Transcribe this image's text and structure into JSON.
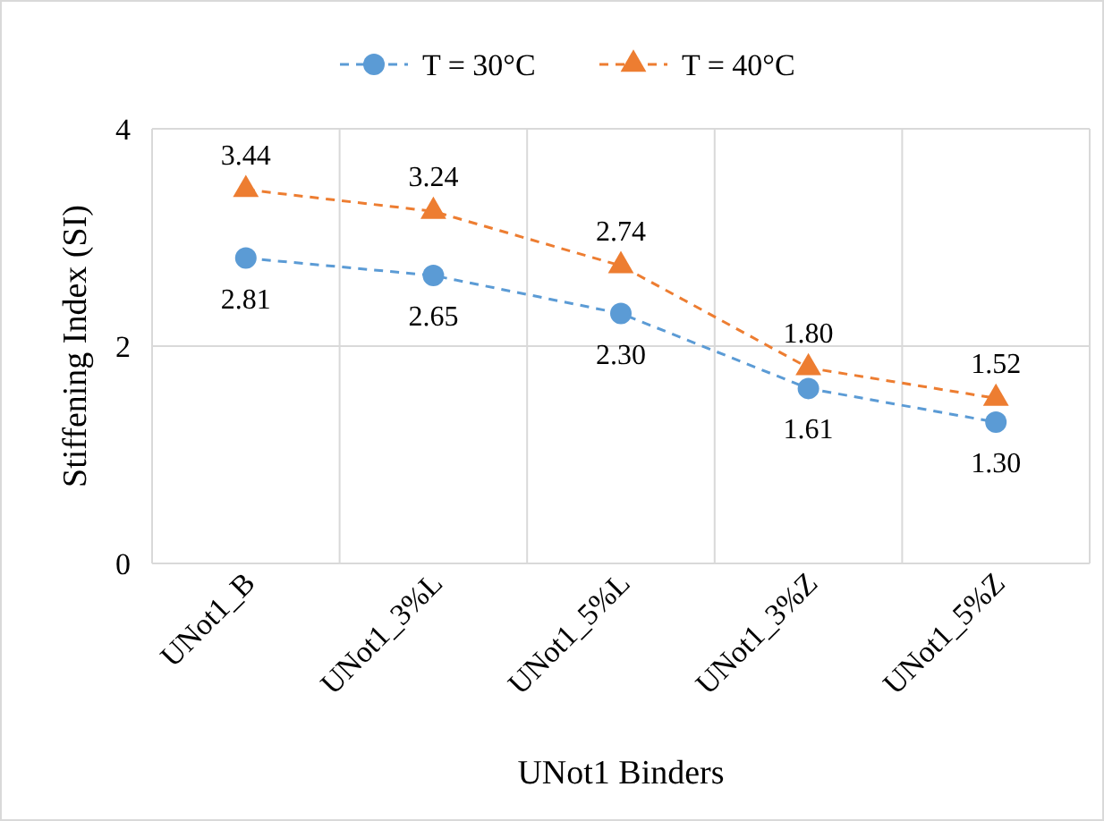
{
  "chart_data": {
    "type": "line",
    "xlabel": "UNot1 Binders",
    "ylabel": "Stiffening Index (SI)",
    "categories": [
      "UNot1_B",
      "UNot1_3%L",
      "UNot1_5%L",
      "UNot1_3%Z",
      "UNot1_5%Z"
    ],
    "series": [
      {
        "name": "T = 30°C",
        "color": "#5b9bd5",
        "marker": "circle",
        "values": [
          2.81,
          2.65,
          2.3,
          1.61,
          1.3
        ],
        "value_labels": [
          "2.81",
          "2.65",
          "2.30",
          "1.61",
          "1.30"
        ]
      },
      {
        "name": "T = 40°C",
        "color": "#ed7d31",
        "marker": "triangle",
        "values": [
          3.44,
          3.24,
          2.74,
          1.8,
          1.52
        ],
        "value_labels": [
          "3.44",
          "3.24",
          "2.74",
          "1.80",
          "1.52"
        ]
      }
    ],
    "ylim": [
      0,
      4
    ],
    "yticks": [
      0,
      2,
      4
    ],
    "grid": true,
    "legend": "top",
    "line_style": "dashed"
  }
}
